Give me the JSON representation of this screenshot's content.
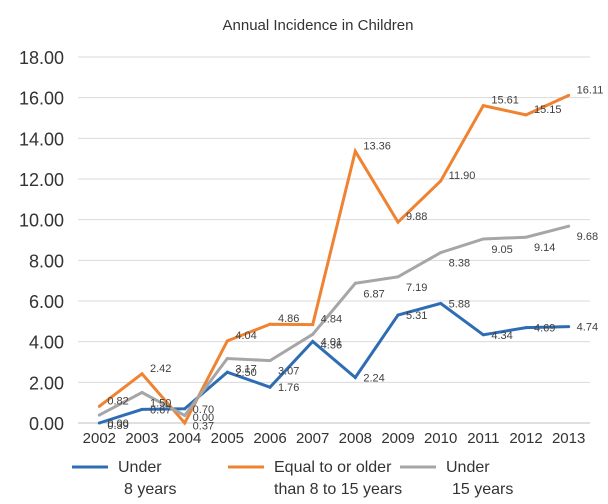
{
  "chart_data": {
    "type": "line",
    "title": "Annual Incidence in Children",
    "xlabel": "",
    "ylabel": "",
    "ylim": [
      0,
      18
    ],
    "yticks": [
      "0.00",
      "2.00",
      "4.00",
      "6.00",
      "8.00",
      "10.00",
      "12.00",
      "14.00",
      "16.00",
      "18.00"
    ],
    "categories": [
      "2002",
      "2003",
      "2004",
      "2005",
      "2006",
      "2007",
      "2008",
      "2009",
      "2010",
      "2011",
      "2012",
      "2013"
    ],
    "grid": true,
    "legend_position": "bottom",
    "series": [
      {
        "name": "Under 8 years",
        "legend_lines": [
          "Under",
          "8 years"
        ],
        "color": "#2e6db4",
        "values": [
          0.0,
          0.67,
          0.7,
          2.5,
          1.76,
          4.01,
          2.24,
          5.31,
          5.88,
          4.34,
          4.69,
          4.74
        ],
        "labels": [
          "0.00",
          "0.67",
          "0.70",
          "2.50",
          "1.76",
          "4.01",
          "2.24",
          "5.31",
          "5.88",
          "4.34",
          "4.69",
          "4.74"
        ]
      },
      {
        "name": "Equal to or older than 8 to 15 years",
        "legend_lines": [
          "Equal to or older",
          "than 8 to 15 years"
        ],
        "color": "#ef8332",
        "values": [
          0.82,
          2.42,
          0.0,
          4.04,
          4.86,
          4.84,
          13.36,
          9.88,
          11.9,
          15.61,
          15.15,
          16.11
        ],
        "labels": [
          "0.82",
          "2.42",
          "0.00",
          "4.04",
          "4.86",
          "4.84",
          "13.36",
          "9.88",
          "11.90",
          "15.61",
          "15.15",
          "16.11"
        ]
      },
      {
        "name": "Under 15 years",
        "legend_lines": [
          "Under",
          "15 years"
        ],
        "color": "#a6a6a6",
        "values": [
          0.39,
          1.5,
          0.37,
          3.17,
          3.07,
          4.36,
          6.87,
          7.19,
          8.38,
          9.05,
          9.14,
          9.68
        ],
        "labels": [
          "0.39",
          "1.50",
          "0.37",
          "3.17",
          "3.07",
          "4.36",
          "6.87",
          "7.19",
          "8.38",
          "9.05",
          "9.14",
          "9.68"
        ]
      }
    ]
  }
}
